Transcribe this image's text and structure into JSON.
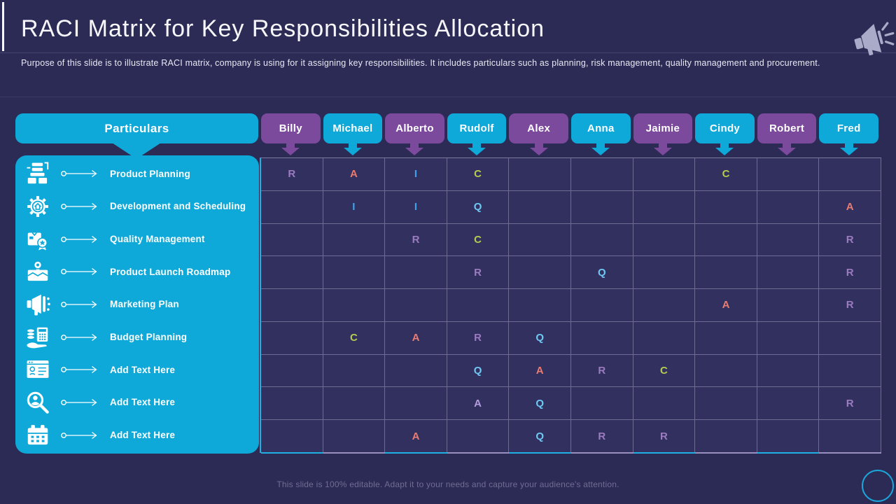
{
  "slide": {
    "title": "RACI Matrix for Key Responsibilities Allocation",
    "subtitle": "Purpose of this slide is to illustrate RACI matrix, company is using for it assigning key responsibilities. It includes particulars such as planning, risk management, quality management and procurement.",
    "footer": "This slide is 100% editable. Adapt it to your needs and capture your audience's attention.",
    "decor_icons": [
      "megaphone-icon",
      "circle-outline-icon"
    ]
  },
  "colors": {
    "background": "#2c2b55",
    "cyan": "#0ea9d8",
    "purple": "#7c4a9c",
    "grid_bg": "#32305f",
    "strip_alt": "#9a90bf",
    "letter_R": "#9b7cc0",
    "letter_A": "#e87c73",
    "letter_I": "#3fa3e8",
    "letter_C": "#b4cc4f",
    "letter_Q": "#6fc8f3"
  },
  "table": {
    "corner_label": "Particulars",
    "people": [
      {
        "name": "Billy",
        "color": "purple"
      },
      {
        "name": "Michael",
        "color": "cyan"
      },
      {
        "name": "Alberto",
        "color": "purple"
      },
      {
        "name": "Rudolf",
        "color": "cyan"
      },
      {
        "name": "Alex",
        "color": "purple"
      },
      {
        "name": "Anna",
        "color": "cyan"
      },
      {
        "name": "Jaimie",
        "color": "purple"
      },
      {
        "name": "Cindy",
        "color": "cyan"
      },
      {
        "name": "Robert",
        "color": "purple"
      },
      {
        "name": "Fred",
        "color": "cyan"
      }
    ],
    "particulars": [
      {
        "label": "Product Planning",
        "icon": "production-stack-icon"
      },
      {
        "label": "Development and Scheduling",
        "icon": "gear-house-icon"
      },
      {
        "label": "Quality Management",
        "icon": "quality-badge-icon"
      },
      {
        "label": "Product Launch Roadmap",
        "icon": "map-pin-icon"
      },
      {
        "label": "Marketing Plan",
        "icon": "megaphone-small-icon"
      },
      {
        "label": "Budget Planning",
        "icon": "budget-calculator-icon"
      },
      {
        "label": "Add Text Here",
        "icon": "window-checklist-icon"
      },
      {
        "label": "Add Text Here",
        "icon": "search-person-icon"
      },
      {
        "label": "Add Text Here",
        "icon": "calendar-icon"
      }
    ],
    "assignments": [
      {
        "row": 1,
        "person": "Billy",
        "letter": "R"
      },
      {
        "row": 1,
        "person": "Michael",
        "letter": "A"
      },
      {
        "row": 1,
        "person": "Alberto",
        "letter": "I"
      },
      {
        "row": 1,
        "person": "Rudolf",
        "letter": "C"
      },
      {
        "row": 1,
        "person": "Cindy",
        "letter": "C"
      },
      {
        "row": 2,
        "person": "Michael",
        "letter": "I"
      },
      {
        "row": 2,
        "person": "Alberto",
        "letter": "I"
      },
      {
        "row": 2,
        "person": "Rudolf",
        "letter": "Q"
      },
      {
        "row": 2,
        "person": "Fred",
        "letter": "A"
      },
      {
        "row": 3,
        "person": "Alberto",
        "letter": "R"
      },
      {
        "row": 3,
        "person": "Rudolf",
        "letter": "C"
      },
      {
        "row": 3,
        "person": "Fred",
        "letter": "R"
      },
      {
        "row": 4,
        "person": "Rudolf",
        "letter": "R"
      },
      {
        "row": 4,
        "person": "Anna",
        "letter": "Q"
      },
      {
        "row": 4,
        "person": "Fred",
        "letter": "R"
      },
      {
        "row": 5,
        "person": "Cindy",
        "letter": "A"
      },
      {
        "row": 5,
        "person": "Fred",
        "letter": "R"
      },
      {
        "row": 6,
        "person": "Michael",
        "letter": "C"
      },
      {
        "row": 6,
        "person": "Alberto",
        "letter": "A"
      },
      {
        "row": 6,
        "person": "Rudolf",
        "letter": "R"
      },
      {
        "row": 6,
        "person": "Alex",
        "letter": "Q"
      },
      {
        "row": 7,
        "person": "Rudolf",
        "letter": "Q"
      },
      {
        "row": 7,
        "person": "Alex",
        "letter": "A"
      },
      {
        "row": 7,
        "person": "Anna",
        "letter": "R"
      },
      {
        "row": 7,
        "person": "Jaimie",
        "letter": "C"
      },
      {
        "row": 8,
        "person": "Rudolf",
        "letter": "A",
        "color": "#b59ce2"
      },
      {
        "row": 8,
        "person": "Alex",
        "letter": "Q"
      },
      {
        "row": 8,
        "person": "Fred",
        "letter": "R"
      },
      {
        "row": 9,
        "person": "Alberto",
        "letter": "A"
      },
      {
        "row": 9,
        "person": "Alex",
        "letter": "Q"
      },
      {
        "row": 9,
        "person": "Anna",
        "letter": "R"
      },
      {
        "row": 9,
        "person": "Jaimie",
        "letter": "R"
      }
    ]
  }
}
